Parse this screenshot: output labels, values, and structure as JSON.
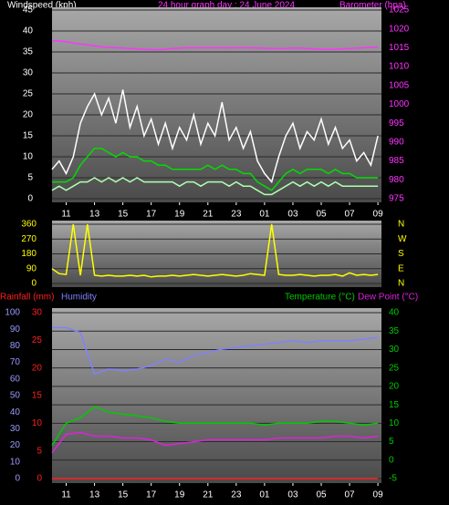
{
  "chart_data": [
    {
      "type": "line",
      "title": "24 hour graph day : 24 June 2024",
      "ylabel": "Windspeed (kph)",
      "y2label": "Barometer (hpa)",
      "x": [
        10,
        10.5,
        11,
        11.5,
        12,
        12.5,
        13,
        13.5,
        14,
        14.5,
        15,
        15.5,
        16,
        16.5,
        17,
        17.5,
        18,
        18.5,
        19,
        19.5,
        20,
        20.5,
        21,
        21.5,
        22,
        22.5,
        23,
        23.5,
        24,
        24.5,
        25,
        25.5,
        26,
        26.5,
        27,
        27.5,
        28,
        28.5,
        29,
        29.5,
        30,
        30.5,
        31,
        31.5,
        32,
        32.5,
        33
      ],
      "xlim": [
        10,
        33.25
      ],
      "xticks": [
        11,
        13,
        15,
        17,
        19,
        21,
        23,
        {
          "value": 25,
          "label": "01"
        },
        {
          "value": 27,
          "label": "03"
        },
        {
          "value": 29,
          "label": "05"
        },
        {
          "value": 31,
          "label": "07"
        },
        {
          "value": 33,
          "label": "09"
        }
      ],
      "ylim": [
        0,
        45
      ],
      "yticks": [
        0,
        5,
        10,
        15,
        20,
        25,
        30,
        35,
        40,
        45
      ],
      "y2lim": [
        975,
        1025
      ],
      "y2ticks": [
        975,
        980,
        985,
        990,
        995,
        1000,
        1005,
        1010,
        1015,
        1020,
        1025
      ],
      "grid": true,
      "series": [
        {
          "color": "#ffffff",
          "values": [
            7,
            9,
            6,
            10,
            18,
            22,
            25,
            20,
            24,
            18,
            26,
            17,
            22,
            15,
            19,
            13,
            18,
            12,
            17,
            14,
            20,
            13,
            18,
            15,
            23,
            14,
            17,
            12,
            16,
            9,
            6,
            4,
            10,
            15,
            18,
            12,
            16,
            14,
            19,
            13,
            17,
            12,
            14,
            9,
            11,
            8,
            15
          ]
        },
        {
          "color": "#00dd00",
          "values": [
            4,
            4,
            4,
            5,
            8,
            10,
            12,
            12,
            11,
            10,
            11,
            10,
            10,
            9,
            9,
            8,
            8,
            7,
            7,
            7,
            7,
            7,
            8,
            7,
            8,
            7,
            7,
            6,
            6,
            4,
            3,
            2,
            4,
            6,
            7,
            6,
            7,
            7,
            7,
            6,
            7,
            6,
            6,
            5,
            5,
            5,
            5
          ]
        },
        {
          "color": "#b0ffb0",
          "values": [
            2,
            3,
            2,
            3,
            4,
            4,
            5,
            4,
            5,
            4,
            5,
            4,
            5,
            4,
            4,
            4,
            4,
            4,
            3,
            4,
            4,
            3,
            4,
            4,
            4,
            3,
            4,
            3,
            3,
            2,
            1,
            1,
            2,
            3,
            4,
            3,
            4,
            3,
            4,
            3,
            4,
            3,
            3,
            3,
            3,
            3,
            3
          ]
        },
        {
          "color": "#ff33ff",
          "axis": "y2",
          "values": [
            1016.8,
            1016.8,
            1016.6,
            1016.2,
            1016,
            1015.8,
            1015.5,
            1015.3,
            1015.1,
            1015,
            1014.9,
            1014.8,
            1014.7,
            1014.6,
            1014.5,
            1014.5,
            1014.6,
            1014.8,
            1014.9,
            1015,
            1015,
            1015,
            1015,
            1015,
            1015,
            1015,
            1015,
            1015,
            1015,
            1014.9,
            1014.9,
            1014.8,
            1014.8,
            1014.8,
            1014.9,
            1014.9,
            1014.8,
            1014.7,
            1014.6,
            1014.6,
            1014.6,
            1014.7,
            1014.8,
            1014.9,
            1015,
            1015.1,
            1015.2
          ]
        }
      ]
    },
    {
      "type": "line",
      "x": [
        10,
        10.5,
        11,
        11.5,
        12,
        12.5,
        13,
        13.5,
        14,
        14.5,
        15,
        15.5,
        16,
        16.5,
        17,
        17.5,
        18,
        18.5,
        19,
        19.5,
        20,
        20.5,
        21,
        21.5,
        22,
        22.5,
        23,
        23.5,
        24,
        24.5,
        25,
        25.5,
        26,
        26.5,
        27,
        27.5,
        28,
        28.5,
        29,
        29.5,
        30,
        30.5,
        31,
        31.5,
        32,
        32.5,
        33
      ],
      "xlim": [
        10,
        33.25
      ],
      "ylim": [
        0,
        360
      ],
      "yticks": [
        0,
        90,
        180,
        270,
        360
      ],
      "y2lim": [
        0,
        360
      ],
      "y2ticks": [
        {
          "value": 360,
          "label": "N"
        },
        {
          "value": 270,
          "label": "W"
        },
        {
          "value": 180,
          "label": "S"
        },
        {
          "value": 90,
          "label": "E"
        },
        {
          "value": 0,
          "label": "N"
        }
      ],
      "grid": true,
      "series": [
        {
          "color": "#ffff00",
          "values": [
            90,
            60,
            55,
            360,
            50,
            360,
            50,
            45,
            50,
            45,
            45,
            50,
            45,
            50,
            40,
            45,
            45,
            50,
            45,
            50,
            55,
            50,
            45,
            50,
            55,
            50,
            45,
            50,
            60,
            55,
            50,
            360,
            55,
            50,
            50,
            55,
            50,
            45,
            50,
            50,
            55,
            45,
            65,
            50,
            55,
            50,
            55
          ]
        }
      ]
    },
    {
      "type": "line",
      "x": [
        10,
        11,
        12,
        13,
        14,
        15,
        16,
        17,
        18,
        19,
        20,
        21,
        22,
        23,
        24,
        25,
        26,
        27,
        28,
        29,
        30,
        31,
        32,
        33
      ],
      "xlim": [
        10,
        33.25
      ],
      "xticks": [
        11,
        13,
        15,
        17,
        19,
        21,
        23,
        {
          "value": 25,
          "label": "01"
        },
        {
          "value": 27,
          "label": "03"
        },
        {
          "value": 29,
          "label": "05"
        },
        {
          "value": 31,
          "label": "07"
        },
        {
          "value": 33,
          "label": "09"
        }
      ],
      "ylim": [
        0,
        30
      ],
      "yticks": [
        0,
        5,
        10,
        15,
        20,
        25,
        30
      ],
      "y3lim": [
        0,
        100
      ],
      "y3ticks": [
        0,
        10,
        20,
        30,
        40,
        50,
        60,
        70,
        80,
        90,
        100
      ],
      "y2lim": [
        -5,
        40
      ],
      "y2ticks": [
        -5,
        0,
        5,
        10,
        15,
        20,
        25,
        30,
        35,
        40
      ],
      "grid": true,
      "series": [
        {
          "name": "Rainfall (mm)",
          "color": "#ff2020",
          "values": [
            0,
            0,
            0,
            0,
            0,
            0,
            0,
            0,
            0,
            0,
            0,
            0,
            0,
            0,
            0,
            0,
            0,
            0,
            0,
            0,
            0,
            0,
            0,
            0
          ]
        },
        {
          "name": "Humidity",
          "color": "#8080ff",
          "axis": "y3",
          "values": [
            91,
            91,
            88,
            63,
            66,
            65,
            66,
            68,
            72,
            70,
            74,
            76,
            78,
            79,
            80,
            81,
            82,
            83,
            82,
            83,
            83,
            83,
            84,
            85
          ]
        },
        {
          "name": "Temperature (°C)",
          "color": "#00cc00",
          "axis": "y2",
          "values": [
            4,
            10,
            11.5,
            14.5,
            13,
            12.5,
            12,
            11.5,
            10.5,
            10,
            10,
            10,
            10,
            10,
            10,
            9.5,
            10,
            10,
            10,
            10.5,
            10.5,
            10,
            9.5,
            10
          ]
        },
        {
          "name": "Dew Point (°C)",
          "color": "#dd22dd",
          "axis": "y2",
          "values": [
            2,
            7,
            7.5,
            6.5,
            6.5,
            6,
            6,
            5.5,
            4,
            4.5,
            5,
            5.5,
            5.5,
            5.5,
            5.5,
            5.5,
            6,
            6,
            6,
            6,
            6.5,
            6.5,
            6,
            6.5
          ]
        }
      ]
    }
  ]
}
